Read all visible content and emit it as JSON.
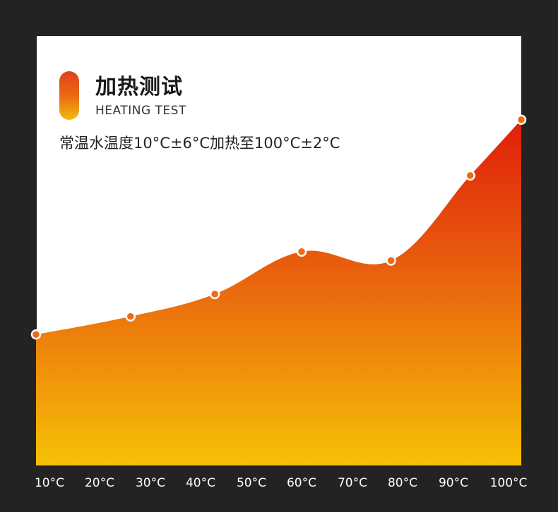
{
  "header": {
    "title": "加热测试",
    "subtitle": "HEATING TEST",
    "description": "常温水温度10°C±6°C加热至100°C±2°C"
  },
  "colors": {
    "background": "#232323",
    "panel": "#ffffff",
    "gradient_top": "#e01e0a",
    "gradient_mid": "#e9620e",
    "gradient_bottom": "#f6c106",
    "marker_fill": "#ef6a14"
  },
  "chart_data": {
    "type": "area",
    "categories": [
      "10°C",
      "20°C",
      "30°C",
      "40°C",
      "50°C",
      "60°C",
      "70°C",
      "80°C",
      "90°C",
      "100°C"
    ],
    "x_range": [
      0,
      9.5
    ],
    "y_range": [
      0,
      100
    ],
    "points": [
      {
        "x": 0.0,
        "y": 30.5
      },
      {
        "x": 1.85,
        "y": 34.7
      },
      {
        "x": 3.5,
        "y": 39.9
      },
      {
        "x": 5.2,
        "y": 49.8
      },
      {
        "x": 6.95,
        "y": 47.7
      },
      {
        "x": 8.5,
        "y": 67.5
      },
      {
        "x": 9.5,
        "y": 80.5
      }
    ],
    "grid": false,
    "legend": "none"
  }
}
